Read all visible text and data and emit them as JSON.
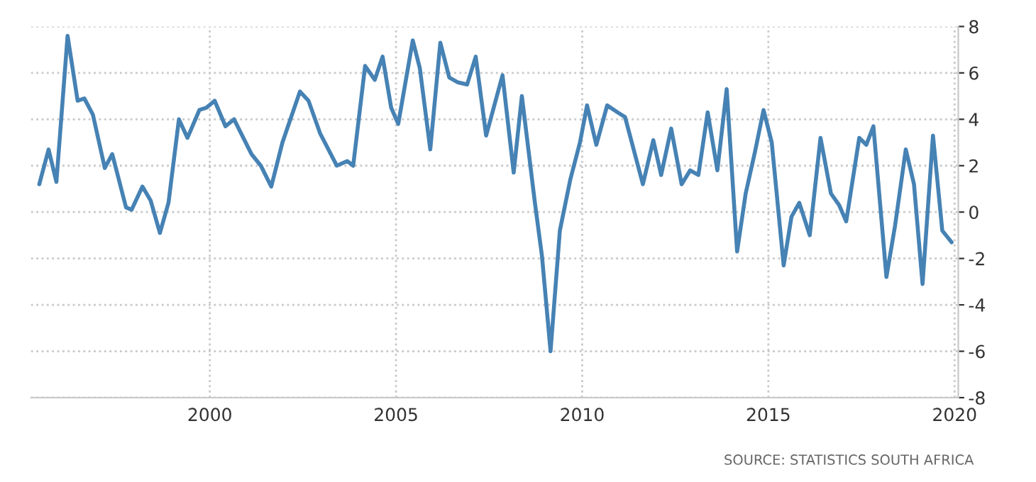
{
  "chart_data": {
    "type": "line",
    "x": [
      1995.42,
      1995.67,
      1995.88,
      1996.18,
      1996.45,
      1996.63,
      1996.86,
      1997.18,
      1997.38,
      1997.75,
      1997.9,
      1998.19,
      1998.41,
      1998.66,
      1998.89,
      1999.17,
      1999.4,
      1999.72,
      1999.91,
      2000.13,
      2000.42,
      2000.65,
      2001.12,
      2001.37,
      2001.65,
      2001.95,
      2002.42,
      2002.65,
      2002.96,
      2003.41,
      2003.69,
      2003.85,
      2004.17,
      2004.43,
      2004.64,
      2004.87,
      2005.06,
      2005.45,
      2005.64,
      2005.92,
      2006.19,
      2006.43,
      2006.65,
      2006.91,
      2007.14,
      2007.42,
      2007.86,
      2008.16,
      2008.38,
      2008.73,
      2008.92,
      2009.15,
      2009.4,
      2009.68,
      2009.94,
      2010.13,
      2010.38,
      2010.67,
      2010.95,
      2011.15,
      2011.63,
      2011.91,
      2012.12,
      2012.39,
      2012.67,
      2012.9,
      2013.12,
      2013.37,
      2013.63,
      2013.88,
      2014.16,
      2014.39,
      2014.64,
      2014.87,
      2015.09,
      2015.41,
      2015.62,
      2015.83,
      2016.11,
      2016.4,
      2016.68,
      2016.9,
      2017.09,
      2017.44,
      2017.63,
      2017.82,
      2018.17,
      2018.4,
      2018.69,
      2018.91,
      2019.14,
      2019.42,
      2019.67,
      2019.92
    ],
    "series": [
      {
        "color": "#4682b4",
        "values": [
          1.2,
          2.7,
          1.3,
          7.6,
          4.8,
          4.9,
          4.2,
          1.9,
          2.5,
          0.2,
          0.1,
          1.1,
          0.5,
          -0.9,
          0.4,
          4.0,
          3.2,
          4.4,
          4.5,
          4.8,
          3.7,
          4.0,
          2.5,
          2.0,
          1.1,
          3.0,
          5.2,
          4.8,
          3.4,
          2.0,
          2.2,
          2.0,
          6.3,
          5.7,
          6.7,
          4.5,
          3.8,
          7.4,
          6.2,
          2.7,
          7.3,
          5.8,
          5.6,
          5.5,
          6.7,
          3.3,
          5.9,
          1.7,
          5.0,
          0.4,
          -1.9,
          -6.0,
          -0.8,
          1.4,
          3.0,
          4.6,
          2.9,
          4.6,
          4.3,
          4.1,
          1.2,
          3.1,
          1.6,
          3.6,
          1.2,
          1.8,
          1.6,
          4.3,
          1.8,
          5.3,
          -1.7,
          0.8,
          2.6,
          4.4,
          3.0,
          -2.3,
          -0.2,
          0.4,
          -1.0,
          3.2,
          0.8,
          0.3,
          -0.4,
          3.2,
          2.9,
          3.7,
          -2.8,
          -0.6,
          2.7,
          1.2,
          -3.1,
          3.3,
          -0.8,
          -1.3
        ]
      }
    ],
    "xlim": [
      1995.2,
      2020.1
    ],
    "xticks": [
      2000,
      2005,
      2010,
      2015,
      2020
    ],
    "ylim": [
      -8,
      8
    ],
    "yticks": [
      -8,
      -6,
      -4,
      -2,
      0,
      2,
      4,
      6,
      8
    ],
    "grid": true,
    "line_style": "solid",
    "marker": "none",
    "annotations": [
      "SOURCE: STATISTICS SOUTH AFRICA"
    ]
  }
}
